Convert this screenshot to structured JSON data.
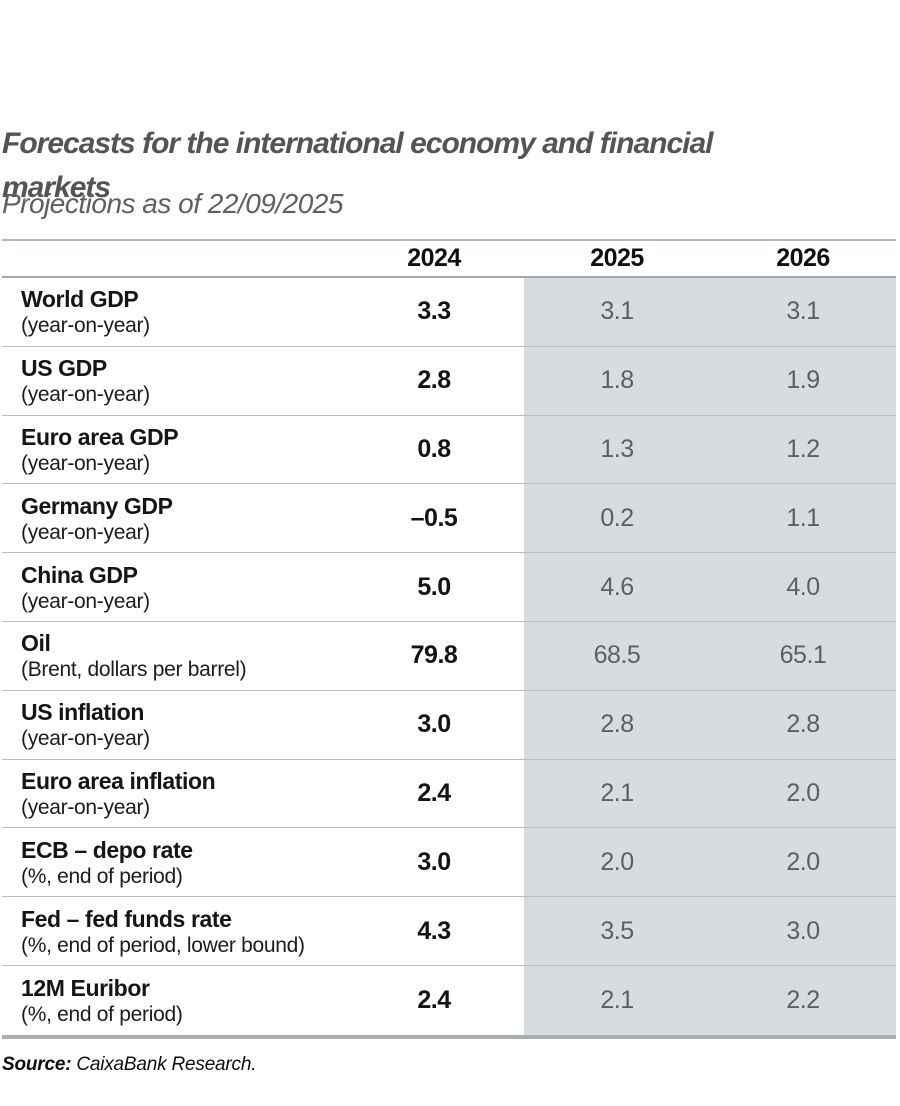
{
  "chart_data": {
    "type": "table",
    "title": "Forecasts for the international economy and financial markets",
    "title_lines": [
      "Forecasts for the international economy and financial",
      "markets"
    ],
    "subtitle": "Projections as of 22/09/2025",
    "columns": [
      "2024",
      "2025",
      "2026"
    ],
    "rows": [
      {
        "label": "World GDP",
        "sublabel": "(year-on-year)",
        "values": [
          "3.3",
          "3.1",
          "3.1"
        ]
      },
      {
        "label": "US GDP",
        "sublabel": "(year-on-year)",
        "values": [
          "2.8",
          "1.8",
          "1.9"
        ]
      },
      {
        "label": "Euro area GDP",
        "sublabel": "(year-on-year)",
        "values": [
          "0.8",
          "1.3",
          "1.2"
        ]
      },
      {
        "label": "Germany GDP",
        "sublabel": "(year-on-year)",
        "values": [
          "–0.5",
          "0.2",
          "1.1"
        ]
      },
      {
        "label": "China GDP",
        "sublabel": "(year-on-year)",
        "values": [
          "5.0",
          "4.6",
          "4.0"
        ]
      },
      {
        "label": "Oil",
        "sublabel": "(Brent, dollars per barrel)",
        "values": [
          "79.8",
          "68.5",
          "65.1"
        ]
      },
      {
        "label": "US inflation",
        "sublabel": "(year-on-year)",
        "values": [
          "3.0",
          "2.8",
          "2.8"
        ]
      },
      {
        "label": "Euro area inflation",
        "sublabel": "(year-on-year)",
        "values": [
          "2.4",
          "2.1",
          "2.0"
        ]
      },
      {
        "label": "ECB – depo rate",
        "sublabel": "(%, end of period)",
        "values": [
          "3.0",
          "2.0",
          "2.0"
        ]
      },
      {
        "label": "Fed – fed funds rate",
        "sublabel": "(%, end of period, lower bound)",
        "values": [
          "4.3",
          "3.5",
          "3.0"
        ]
      },
      {
        "label": "12M Euribor",
        "sublabel": "(%, end of period)",
        "values": [
          "2.4",
          "2.1",
          "2.2"
        ]
      }
    ],
    "source_label": "Source:",
    "source_text": "CaixaBank Research.",
    "layout": {
      "shaded_projection_columns": [
        "2025",
        "2026"
      ],
      "grid": "horizontal-rules-only",
      "historical_column_style": "bold-black",
      "projection_column_style": "light-gray-on-shaded"
    },
    "colors": {
      "projection_shade": "#d8dcde",
      "rule_gray": "#b7bdc1",
      "heavy_rule_gray": "#a9b0b4",
      "title_gray": "#535457",
      "subtitle_gray": "#5e5f62",
      "projection_value_text": "#5d5f62",
      "primary_text": "#141517"
    }
  }
}
